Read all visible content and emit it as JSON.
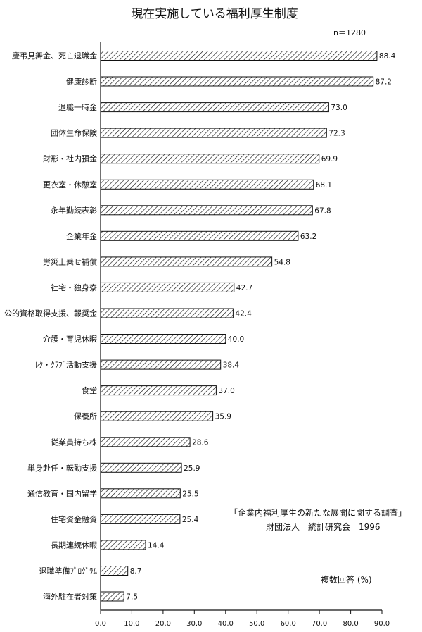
{
  "chart_data": {
    "type": "bar",
    "orientation": "horizontal",
    "title": "現在実施している福利厚生制度",
    "sample_size": "n＝1280",
    "categories": [
      "慶弔見舞金、死亡退職金",
      "健康診断",
      "退職一時金",
      "団体生命保険",
      "財形・社内預金",
      "更衣室・休憩室",
      "永年勤続表彰",
      "企業年金",
      "労災上乗せ補償",
      "社宅・独身寮",
      "公的資格取得支援、報奨金",
      "介護・育児休暇",
      "ﾚｸ・ｸﾗﾌﾞ活動支援",
      "食堂",
      "保養所",
      "従業員持ち株",
      "単身赴任・転勤支援",
      "通信教育・国内留学",
      "住宅資金融資",
      "長期連続休暇",
      "退職準備ﾌﾟﾛｸﾞﾗﾑ",
      "海外駐在者対策"
    ],
    "values": [
      88.4,
      87.2,
      73.0,
      72.3,
      69.9,
      68.1,
      67.8,
      63.2,
      54.8,
      42.7,
      42.4,
      40.0,
      38.4,
      37.0,
      35.9,
      28.6,
      25.9,
      25.5,
      25.4,
      14.4,
      8.7,
      7.5
    ],
    "value_labels": [
      "88.4",
      "87.2",
      "73.0",
      "72.3",
      "69.9",
      "68.1",
      "67.8",
      "63.2",
      "54.8",
      "42.7",
      "42.4",
      "40.0",
      "38.4",
      "37.0",
      "35.9",
      "28.6",
      "25.9",
      "25.5",
      "25.4",
      "14.4",
      "8.7",
      "7.5"
    ],
    "xlim": [
      0,
      90
    ],
    "x_ticks": [
      "0.0",
      "10.0",
      "20.0",
      "30.0",
      "40.0",
      "50.0",
      "60.0",
      "70.0",
      "80.0",
      "90.0"
    ],
    "bar_pattern": "diagonal-hatch",
    "grid": false,
    "source_lines": [
      "「企業内福利厚生の新たな展開に関する調査」",
      "財団法人　統計研究会　1996"
    ],
    "unit_note": "複数回答 (%)"
  }
}
